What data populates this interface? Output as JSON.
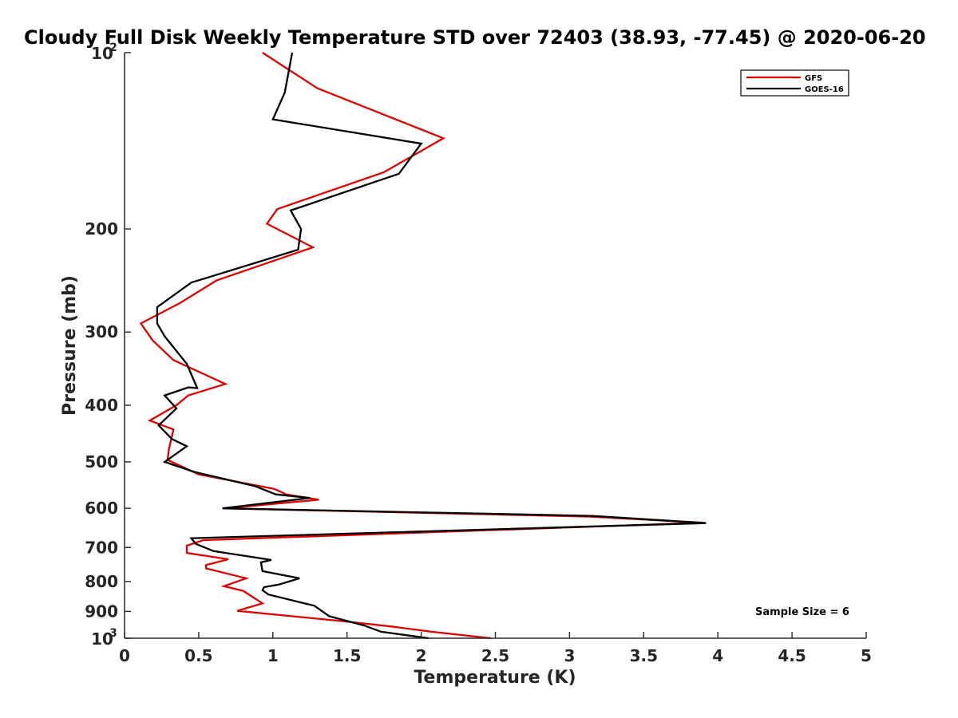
{
  "chart_data": {
    "type": "line",
    "title": "Cloudy Full Disk Weekly Temperature STD over 72403 (38.93, -77.45) @ 2020-06-20",
    "xlabel": "Temperature (K)",
    "ylabel": "Pressure (mb)",
    "xlim": [
      0,
      5
    ],
    "ylim": [
      100,
      1000
    ],
    "yscale": "log",
    "y_reversed": true,
    "x_ticks": [
      "0",
      "0.5",
      "1",
      "1.5",
      "2",
      "2.5",
      "3",
      "3.5",
      "4",
      "4.5",
      "5"
    ],
    "x_tick_values": [
      0,
      0.5,
      1,
      1.5,
      2,
      2.5,
      3,
      3.5,
      4,
      4.5,
      5
    ],
    "y_ticks": [
      {
        "value": 100,
        "base": "10",
        "exp": "2"
      },
      {
        "value": 200,
        "label": "200"
      },
      {
        "value": 300,
        "label": "300"
      },
      {
        "value": 400,
        "label": "400"
      },
      {
        "value": 500,
        "label": "500"
      },
      {
        "value": 600,
        "label": "600"
      },
      {
        "value": 700,
        "label": "700"
      },
      {
        "value": 800,
        "label": "800"
      },
      {
        "value": 900,
        "label": "900"
      },
      {
        "value": 1000,
        "base": "10",
        "exp": "3"
      }
    ],
    "legend_position": "top-right",
    "grid": false,
    "annotation": "Sample Size = 6",
    "series": [
      {
        "name": "GFS",
        "color": "#e00000",
        "points": [
          [
            0.93,
            100
          ],
          [
            1.3,
            115
          ],
          [
            2.15,
            140
          ],
          [
            1.75,
            160
          ],
          [
            1.03,
            185
          ],
          [
            0.96,
            196
          ],
          [
            1.27,
            215
          ],
          [
            0.62,
            245
          ],
          [
            0.37,
            268
          ],
          [
            0.11,
            290
          ],
          [
            0.19,
            310
          ],
          [
            0.33,
            335
          ],
          [
            0.68,
            368
          ],
          [
            0.43,
            385
          ],
          [
            0.35,
            400
          ],
          [
            0.17,
            425
          ],
          [
            0.33,
            440
          ],
          [
            0.3,
            475
          ],
          [
            0.29,
            496
          ],
          [
            0.5,
            525
          ],
          [
            1.01,
            556
          ],
          [
            1.09,
            568
          ],
          [
            1.31,
            580
          ],
          [
            0.68,
            600
          ],
          [
            3.14,
            620
          ],
          [
            3.9,
            635
          ],
          [
            0.53,
            680
          ],
          [
            0.42,
            695
          ],
          [
            0.42,
            715
          ],
          [
            0.7,
            733
          ],
          [
            0.55,
            750
          ],
          [
            0.55,
            760
          ],
          [
            0.82,
            790
          ],
          [
            0.67,
            815
          ],
          [
            0.8,
            830
          ],
          [
            0.93,
            872
          ],
          [
            0.76,
            898
          ],
          [
            1.47,
            935
          ],
          [
            1.8,
            955
          ],
          [
            2.07,
            975
          ],
          [
            2.47,
            1000
          ]
        ]
      },
      {
        "name": "GOES-16",
        "color": "#000000",
        "points": [
          [
            1.13,
            100
          ],
          [
            1.08,
            117
          ],
          [
            1.0,
            130
          ],
          [
            2.0,
            143
          ],
          [
            1.85,
            161
          ],
          [
            1.12,
            186
          ],
          [
            1.19,
            200
          ],
          [
            1.17,
            217
          ],
          [
            0.45,
            247
          ],
          [
            0.22,
            272
          ],
          [
            0.22,
            290
          ],
          [
            0.27,
            305
          ],
          [
            0.42,
            340
          ],
          [
            0.49,
            374
          ],
          [
            0.43,
            373
          ],
          [
            0.27,
            385
          ],
          [
            0.35,
            405
          ],
          [
            0.23,
            433
          ],
          [
            0.32,
            457
          ],
          [
            0.42,
            470
          ],
          [
            0.27,
            500
          ],
          [
            0.47,
            520
          ],
          [
            0.88,
            550
          ],
          [
            1.02,
            568
          ],
          [
            1.25,
            576
          ],
          [
            0.66,
            600
          ],
          [
            3.15,
            618
          ],
          [
            3.92,
            636
          ],
          [
            0.45,
            675
          ],
          [
            0.48,
            690
          ],
          [
            0.6,
            710
          ],
          [
            0.99,
            735
          ],
          [
            0.92,
            742
          ],
          [
            0.93,
            768
          ],
          [
            1.18,
            790
          ],
          [
            1.04,
            810
          ],
          [
            0.94,
            818
          ],
          [
            0.93,
            828
          ],
          [
            0.97,
            842
          ],
          [
            1.28,
            880
          ],
          [
            1.38,
            917
          ],
          [
            1.62,
            952
          ],
          [
            1.73,
            975
          ],
          [
            2.05,
            1000
          ]
        ]
      }
    ]
  }
}
